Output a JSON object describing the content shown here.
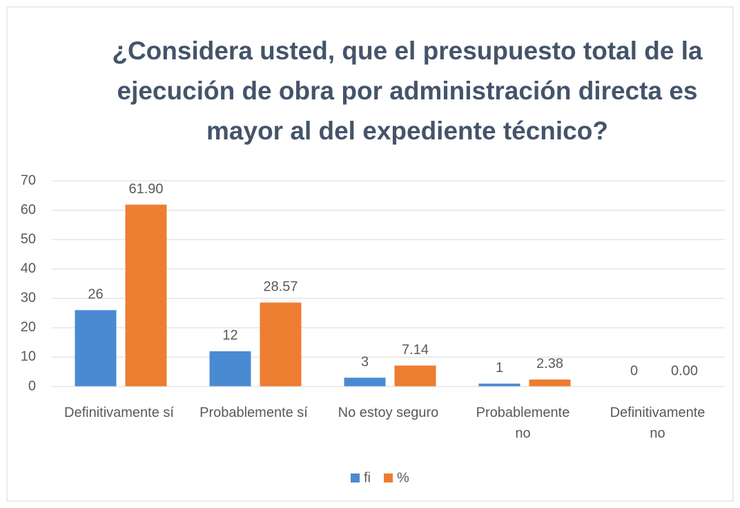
{
  "chart_data": {
    "type": "bar",
    "title": "¿Considera usted, que el presupuesto total de la ejecución de obra por administración directa es mayor al del expediente técnico?",
    "categories": [
      "Definitivamente sí",
      "Probablemente sí",
      "No estoy seguro",
      "Probablemente no",
      "Definitivamente no"
    ],
    "series": [
      {
        "name": "fi",
        "color": "#4a8ad3",
        "values": [
          26,
          12,
          3,
          1,
          0
        ]
      },
      {
        "name": "%",
        "color": "#ed7d31",
        "values": [
          61.9,
          28.57,
          7.14,
          2.38,
          0
        ],
        "value_labels": [
          "61.90",
          "28.57",
          "7.14",
          "2.38",
          "0.00"
        ]
      }
    ],
    "ylim": [
      0,
      70
    ],
    "yticks": [
      0,
      10,
      20,
      30,
      40,
      50,
      60,
      70
    ],
    "grid": true,
    "legend": "bottom"
  }
}
